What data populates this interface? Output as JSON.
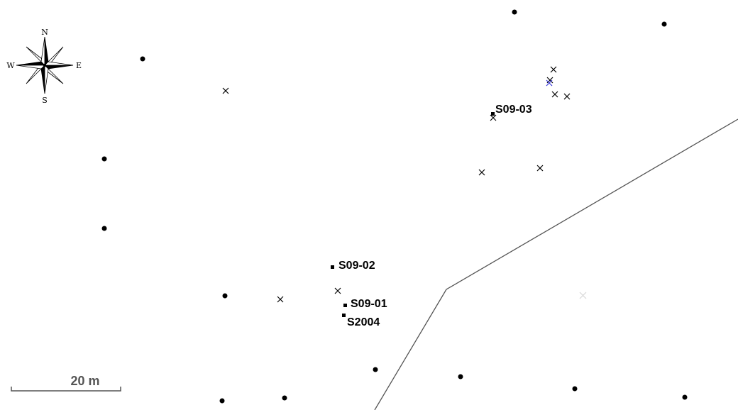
{
  "colors": {
    "background": "#ffffff",
    "ink": "#000000",
    "boundary": "#555555",
    "scale": "#555555",
    "highlight_cross": "#3a3adc",
    "faint_cross": "#d8d8d8"
  },
  "compass": {
    "north": "N",
    "east": "E",
    "south": "S",
    "west": "W",
    "icon": "compass-rose-icon"
  },
  "scale_bar": {
    "label": "20 m"
  },
  "sites": [
    {
      "label": "S09-03"
    },
    {
      "label": "S09-02"
    },
    {
      "label": "S09-01"
    },
    {
      "label": "S2004"
    }
  ],
  "legend": []
}
